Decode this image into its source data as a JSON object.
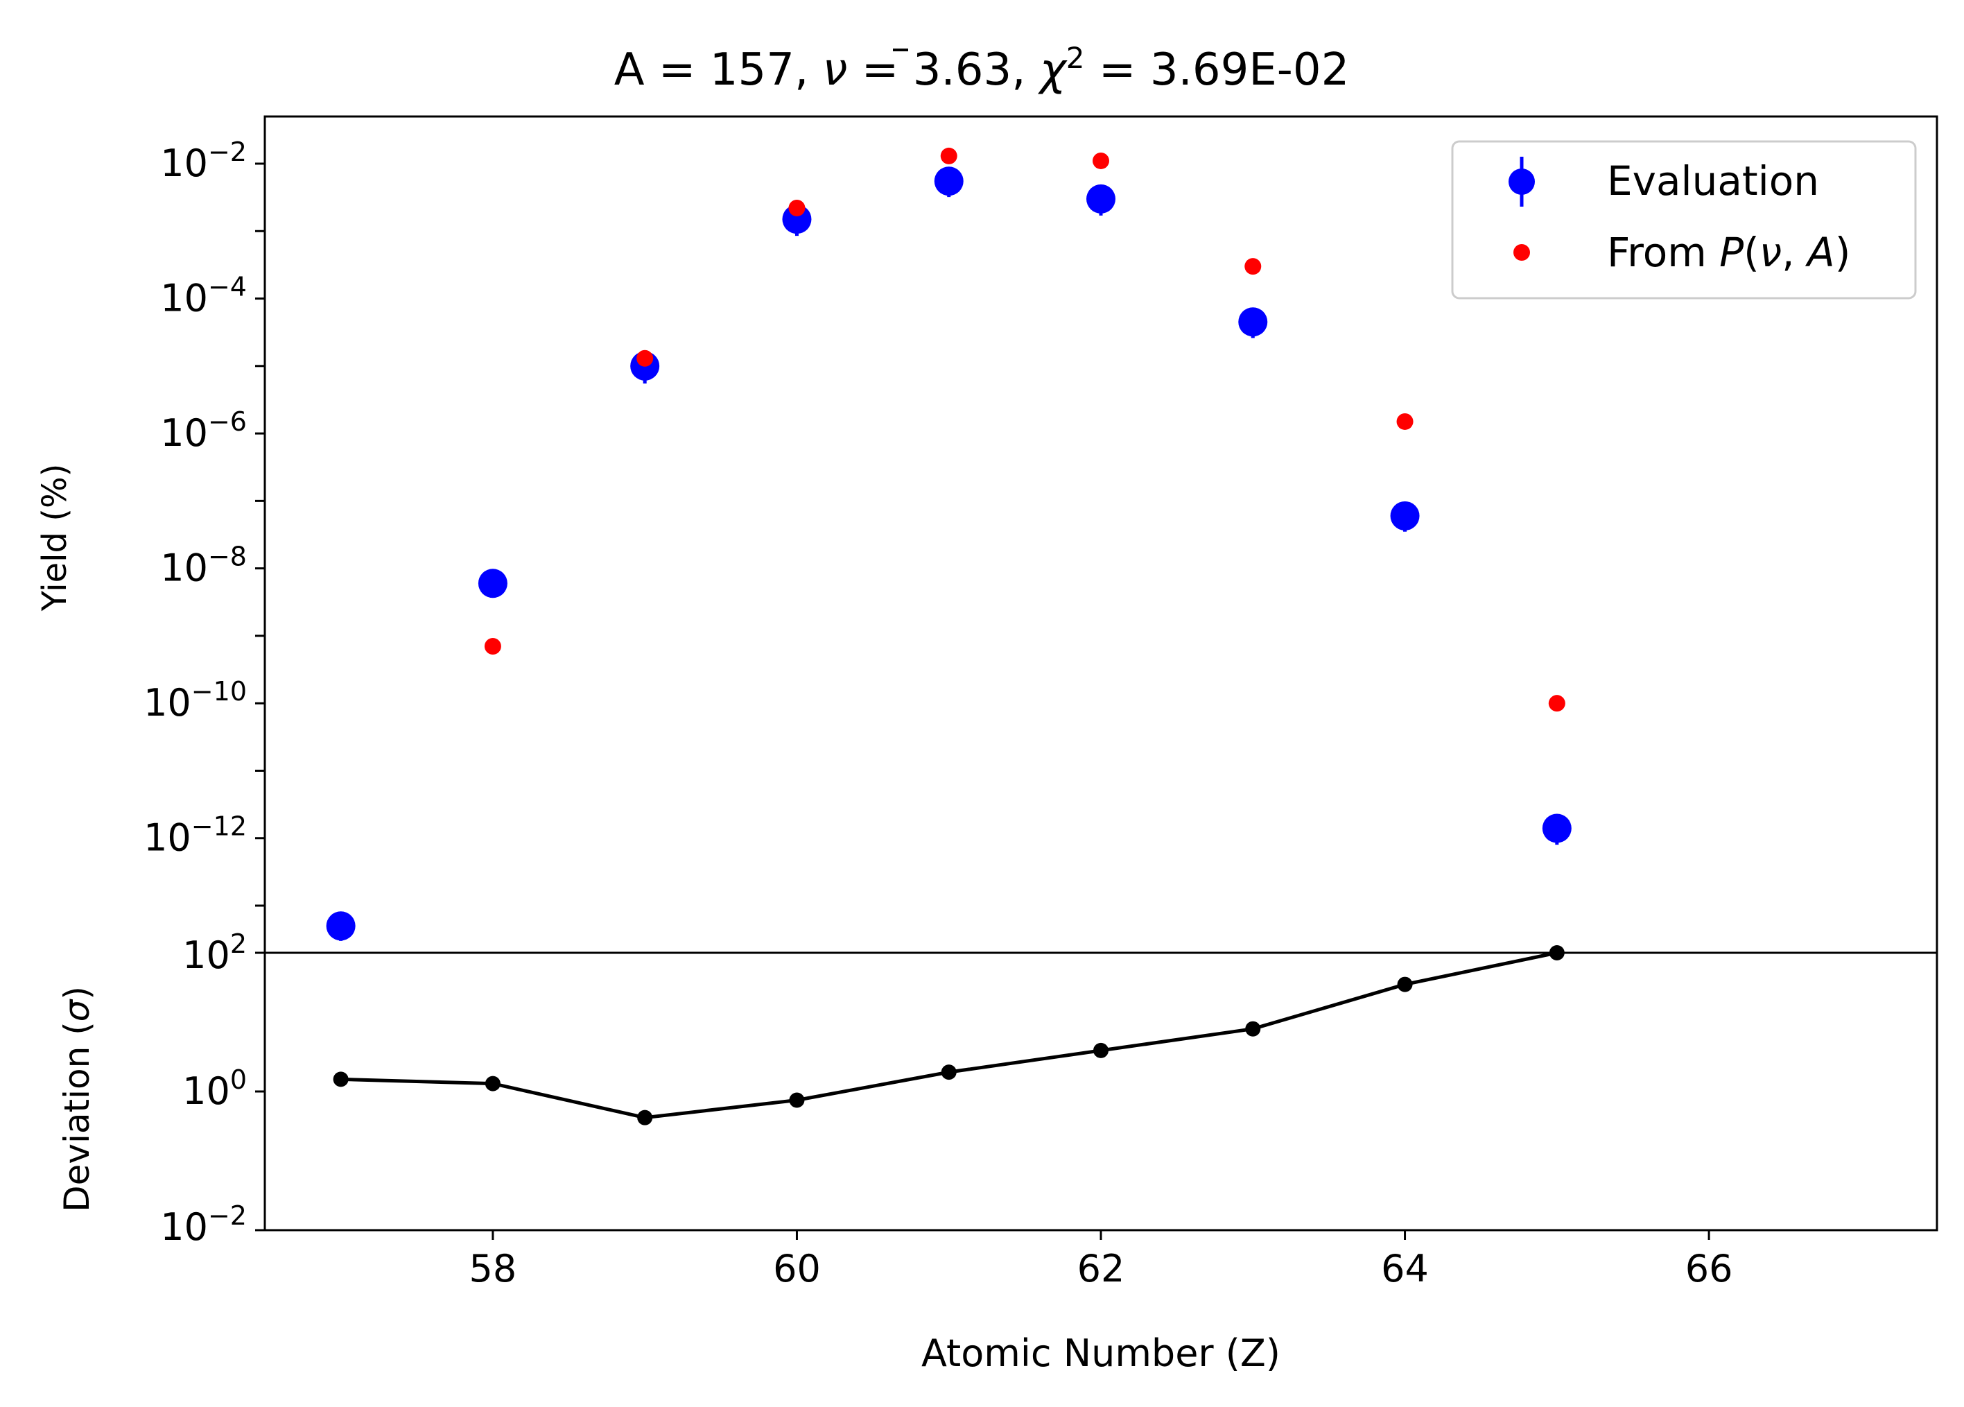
{
  "chart_data": [
    {
      "type": "scatter",
      "title": "A = 157, ν̄ = 3.63, χ² = 3.69E-02",
      "title_parts": {
        "a": "A = 157, ",
        "nu": "ν",
        "mid": " = 3.63, ",
        "chi": "χ",
        "sup": "2",
        "end": " = 3.69E-02"
      },
      "ylabel": "Yield (%)",
      "yscale": "log",
      "ylim": [
        2e-14,
        0.05
      ],
      "xlim": [
        56.5,
        67.5
      ],
      "yticks": [
        {
          "base": "10",
          "exp": "−2",
          "value": 0.01
        },
        {
          "base": "10",
          "exp": "−4",
          "value": 0.0001
        },
        {
          "base": "10",
          "exp": "−6",
          "value": 1e-06
        },
        {
          "base": "10",
          "exp": "−8",
          "value": 1e-08
        },
        {
          "base": "10",
          "exp": "−10",
          "value": 1e-10
        },
        {
          "base": "10",
          "exp": "−12",
          "value": 1e-12
        }
      ],
      "legend": {
        "placement": "top-right",
        "entries": [
          {
            "label": "Evaluation",
            "color": "#0000ff",
            "marker": "circle-errorbar"
          },
          {
            "label_parts": {
              "pre": "From ",
              "p": "P",
              "open": "(",
              "nu": "ν",
              "comma": ", ",
              "a": "A",
              "close": ")"
            },
            "color": "#ff0000",
            "marker": "small-circle"
          }
        ]
      },
      "series": [
        {
          "name": "Evaluation",
          "color": "#0000ff",
          "x": [
            57,
            58,
            59,
            60,
            61,
            62,
            63,
            64,
            65
          ],
          "y": [
            5e-14,
            6e-09,
            1e-05,
            0.0015,
            0.0055,
            0.003,
            4.5e-05,
            6e-08,
            1.4e-12
          ],
          "yerr_low": [
            2e-14,
            2.3e-09,
            4.5e-06,
            0.00065,
            0.0023,
            0.0013,
            1.9e-05,
            2.5e-08,
            6e-13
          ]
        },
        {
          "name": "From P(ν, A)",
          "color": "#ff0000",
          "x": [
            58,
            59,
            60,
            61,
            62,
            63,
            64,
            65
          ],
          "y": [
            7e-10,
            1.3e-05,
            0.0022,
            0.013,
            0.011,
            0.0003,
            1.5e-06,
            1e-10
          ]
        }
      ]
    },
    {
      "type": "line",
      "xlabel": "Atomic Number (Z)",
      "ylabel_parts": {
        "text": "Deviation (",
        "sym": "σ",
        "close": ")"
      },
      "yscale": "log",
      "ylim": [
        0.01,
        100
      ],
      "xlim": [
        56.5,
        67.5
      ],
      "yticks": [
        {
          "base": "10",
          "exp": "2",
          "value": 100
        },
        {
          "base": "10",
          "exp": "0",
          "value": 1
        },
        {
          "base": "10",
          "exp": "−2",
          "value": 0.01
        }
      ],
      "xticks": [
        58,
        60,
        62,
        64,
        66
      ],
      "series": [
        {
          "color": "#000000",
          "x": [
            57,
            58,
            59,
            60,
            61,
            62,
            63,
            64,
            65
          ],
          "y": [
            1.5,
            1.3,
            0.42,
            0.75,
            1.9,
            3.9,
            8,
            35,
            100
          ]
        }
      ]
    }
  ]
}
